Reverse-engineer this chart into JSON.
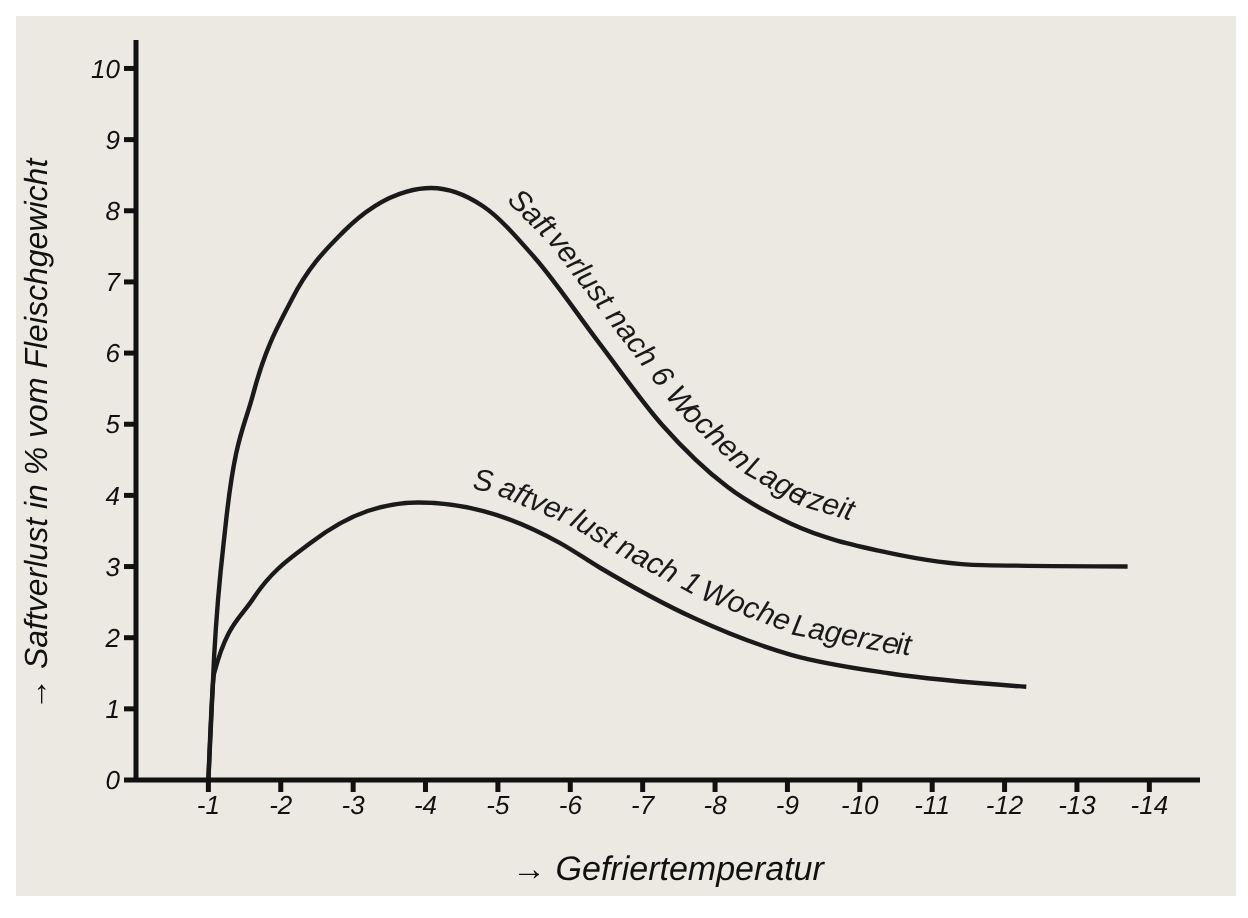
{
  "chart_data": {
    "type": "line",
    "xlabel": "→ Gefriertemperatur",
    "ylabel": "→ Saftverlust in % vom Fleischgewicht",
    "xlim": [
      0,
      -14.7
    ],
    "xticks": [
      -1,
      -2,
      -3,
      -4,
      -5,
      -6,
      -7,
      -8,
      -9,
      -10,
      -11,
      -12,
      -13,
      -14
    ],
    "ylim": [
      0,
      10.4
    ],
    "yticks": [
      0,
      1,
      2,
      3,
      4,
      5,
      6,
      7,
      8,
      9,
      10
    ],
    "marker": "none",
    "line_style": "solid",
    "series": [
      {
        "name": "Saftverlust nach 6 Wochen Lagerzeit",
        "color": "#1a1a1a",
        "x": [
          -1,
          -1.08,
          -1.24,
          -1.62,
          -2.15,
          -2.86,
          -3.74,
          -4.08,
          -4.8,
          -5.5,
          -6.4,
          -7.27,
          -8.17,
          -9.05,
          -10.37,
          -11.7,
          -13.7
        ],
        "values": [
          0,
          1.75,
          3.6,
          5.43,
          6.75,
          7.7,
          8.27,
          8.32,
          8.06,
          7.35,
          6.14,
          4.99,
          4.12,
          3.6,
          3.2,
          3.02,
          3.0
        ]
      },
      {
        "name": "Saftverlust nach 1 Woche Lagerzeit",
        "color": "#1a1a1a",
        "x": [
          -1,
          -1.08,
          -1.62,
          -2.41,
          -3.2,
          -3.9,
          -4.8,
          -5.86,
          -6.4,
          -7.7,
          -9.05,
          -10.4,
          -12.3
        ],
        "values": [
          0,
          1.5,
          2.55,
          3.33,
          3.78,
          3.9,
          3.78,
          3.33,
          2.99,
          2.28,
          1.76,
          1.5,
          1.31
        ]
      }
    ]
  }
}
